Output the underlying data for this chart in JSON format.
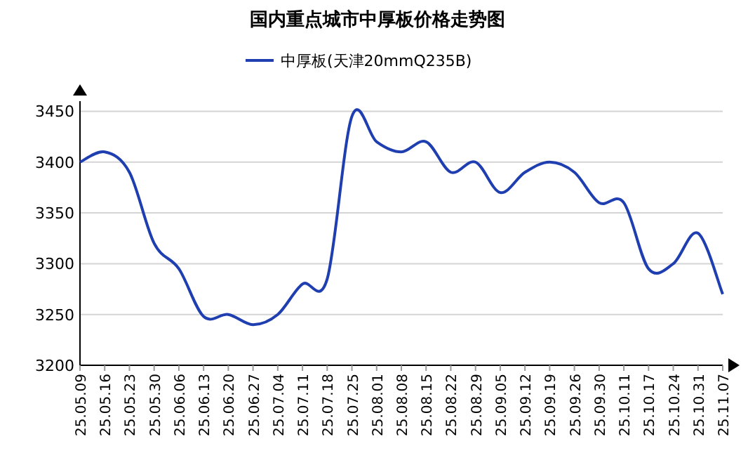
{
  "chart_data": {
    "type": "line",
    "title": "国内重点城市中厚板价格走势图",
    "categories": [
      "25.05.09",
      "25.05.16",
      "25.05.23",
      "25.05.30",
      "25.06.06",
      "25.06.13",
      "25.06.20",
      "25.06.27",
      "25.07.04",
      "25.07.11",
      "25.07.18",
      "25.07.25",
      "25.08.01",
      "25.08.08",
      "25.08.15",
      "25.08.22",
      "25.08.29",
      "25.09.05",
      "25.09.12",
      "25.09.19",
      "25.09.26",
      "25.09.30",
      "25.10.11",
      "25.10.17",
      "25.10.24",
      "25.10.31",
      "25.11.07"
    ],
    "series": [
      {
        "name": "中厚板(天津20mmQ235B)",
        "color": "#1f3fb0",
        "values": [
          3400,
          3410,
          3390,
          3320,
          3295,
          3248,
          3250,
          3240,
          3250,
          3280,
          3285,
          3445,
          3420,
          3410,
          3420,
          3390,
          3400,
          3370,
          3390,
          3400,
          3390,
          3360,
          3360,
          3295,
          3300,
          3330,
          3270
        ]
      }
    ],
    "ylim": [
      3200,
      3460
    ],
    "yticks": [
      3200,
      3250,
      3300,
      3350,
      3400,
      3450
    ],
    "grid": "y",
    "legend": "top",
    "marker": "none",
    "line_style": "solid"
  }
}
